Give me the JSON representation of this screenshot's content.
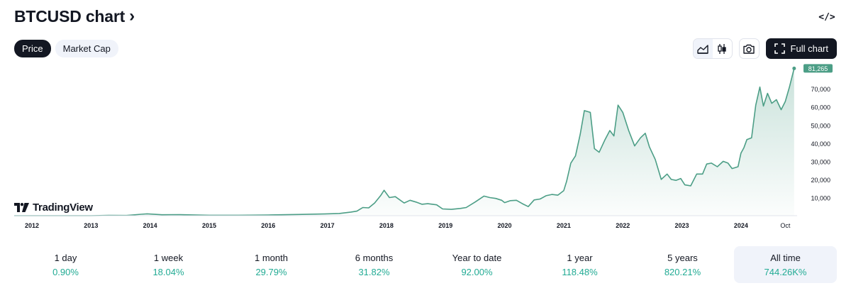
{
  "header": {
    "title": "BTCUSD chart",
    "chevron": "›",
    "embed_label": "</>"
  },
  "tabs": [
    {
      "label": "Price",
      "active": true
    },
    {
      "label": "Market Cap",
      "active": false
    }
  ],
  "toolbar": {
    "area_icon": "area-chart-icon",
    "candles_icon": "candlestick-icon",
    "snapshot_icon": "camera-icon",
    "full_chart_label": "Full chart",
    "full_chart_icon": "expand-icon"
  },
  "logo": {
    "text": "TradingView"
  },
  "colors": {
    "line": "#4c9e86",
    "fill_top": "#cfe9e1",
    "price_tag_bg": "#4c9e86",
    "positive": "#22ab94",
    "dark": "#131722"
  },
  "chart_data": {
    "type": "area",
    "title": "",
    "xlabel": "",
    "ylabel": "",
    "x_range": [
      2011.7,
      2024.95
    ],
    "ylim": [
      0,
      83000
    ],
    "x_ticks": [
      {
        "label": "2012",
        "x": 2012
      },
      {
        "label": "2013",
        "x": 2013
      },
      {
        "label": "2014",
        "x": 2014
      },
      {
        "label": "2015",
        "x": 2015
      },
      {
        "label": "2016",
        "x": 2016
      },
      {
        "label": "2017",
        "x": 2017
      },
      {
        "label": "2018",
        "x": 2018
      },
      {
        "label": "2019",
        "x": 2019
      },
      {
        "label": "2020",
        "x": 2020
      },
      {
        "label": "2021",
        "x": 2021
      },
      {
        "label": "2022",
        "x": 2022
      },
      {
        "label": "2023",
        "x": 2023
      },
      {
        "label": "2024",
        "x": 2024
      },
      {
        "label": "Oct",
        "x": 2024.75
      }
    ],
    "y_ticks": [
      {
        "label": "10,000",
        "value": 10000
      },
      {
        "label": "20,000",
        "value": 20000
      },
      {
        "label": "30,000",
        "value": 30000
      },
      {
        "label": "40,000",
        "value": 40000
      },
      {
        "label": "50,000",
        "value": 50000
      },
      {
        "label": "60,000",
        "value": 60000
      },
      {
        "label": "70,000",
        "value": 70000
      }
    ],
    "last_price_label": "81,265",
    "last_price": 81265,
    "grid": false,
    "series": [
      {
        "x": [
          2011.7,
          2012.0,
          2012.5,
          2013.0,
          2013.3,
          2013.6,
          2013.85,
          2013.95,
          2014.2,
          2014.5,
          2015.0,
          2015.5,
          2016.0,
          2016.5,
          2016.95,
          2017.2,
          2017.4,
          2017.5,
          2017.6,
          2017.7,
          2017.8,
          2017.9,
          2017.96,
          2018.05,
          2018.15,
          2018.3,
          2018.4,
          2018.5,
          2018.6,
          2018.7,
          2018.85,
          2018.95,
          2019.1,
          2019.25,
          2019.35,
          2019.5,
          2019.65,
          2019.75,
          2019.85,
          2019.95,
          2020.0,
          2020.1,
          2020.2,
          2020.3,
          2020.4,
          2020.5,
          2020.6,
          2020.7,
          2020.8,
          2020.9,
          2021.0,
          2021.05,
          2021.12,
          2021.2,
          2021.28,
          2021.35,
          2021.45,
          2021.52,
          2021.6,
          2021.7,
          2021.78,
          2021.85,
          2021.92,
          2022.0,
          2022.1,
          2022.2,
          2022.3,
          2022.38,
          2022.45,
          2022.55,
          2022.65,
          2022.75,
          2022.82,
          2022.9,
          2022.98,
          2023.05,
          2023.15,
          2023.25,
          2023.35,
          2023.42,
          2023.5,
          2023.6,
          2023.7,
          2023.78,
          2023.85,
          2023.95,
          2024.0,
          2024.05,
          2024.1,
          2024.18,
          2024.25,
          2024.32,
          2024.38,
          2024.45,
          2024.52,
          2024.6,
          2024.68,
          2024.75,
          2024.82,
          2024.9
        ],
        "values": [
          5,
          5,
          7,
          13,
          150,
          100,
          800,
          1000,
          500,
          600,
          250,
          250,
          400,
          650,
          950,
          1200,
          2000,
          2500,
          4500,
          4300,
          7000,
          11000,
          14000,
          10000,
          10500,
          7000,
          8500,
          7500,
          6300,
          6600,
          6000,
          3700,
          3500,
          4000,
          4500,
          7500,
          10800,
          10000,
          9500,
          8500,
          7200,
          8300,
          8500,
          6600,
          5000,
          8700,
          9200,
          11000,
          11700,
          11300,
          13800,
          19000,
          29000,
          33000,
          45000,
          58000,
          57000,
          37000,
          35000,
          42000,
          47000,
          44000,
          61000,
          57000,
          47000,
          38500,
          43000,
          45500,
          38000,
          31000,
          20000,
          23000,
          20000,
          19500,
          20500,
          17000,
          16500,
          23000,
          23000,
          28500,
          29000,
          27000,
          30000,
          29000,
          26000,
          27000,
          34500,
          37500,
          42000,
          43000,
          61000,
          71000,
          60500,
          67500,
          62000,
          64000,
          58500,
          63000,
          71000,
          81265
        ]
      }
    ]
  },
  "periods": [
    {
      "label": "1 day",
      "value": "0.90%",
      "active": false
    },
    {
      "label": "1 week",
      "value": "18.04%",
      "active": false
    },
    {
      "label": "1 month",
      "value": "29.79%",
      "active": false
    },
    {
      "label": "6 months",
      "value": "31.82%",
      "active": false
    },
    {
      "label": "Year to date",
      "value": "92.00%",
      "active": false
    },
    {
      "label": "1 year",
      "value": "118.48%",
      "active": false
    },
    {
      "label": "5 years",
      "value": "820.21%",
      "active": false
    },
    {
      "label": "All time",
      "value": "744.26K%",
      "active": true
    }
  ]
}
